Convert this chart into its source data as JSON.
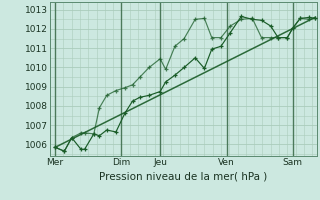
{
  "xlabel": "Pression niveau de la mer( hPa )",
  "bg_color": "#cce8e0",
  "grid_color": "#aaccbb",
  "line_color": "#1a5c28",
  "ylim": [
    1005.4,
    1013.4
  ],
  "yticks": [
    1006,
    1007,
    1008,
    1009,
    1010,
    1011,
    1012,
    1013
  ],
  "day_labels": [
    "Mer",
    "Dim",
    "Jeu",
    "Ven",
    "Sam"
  ],
  "day_positions": [
    0,
    36,
    57,
    93,
    129
  ],
  "vline_positions": [
    0,
    36,
    57,
    93,
    129
  ],
  "xlim": [
    -3,
    142
  ],
  "series1_x": [
    0,
    5,
    9,
    14,
    16,
    21,
    24,
    28,
    33,
    38,
    42,
    46,
    51,
    57,
    60,
    65,
    70,
    76,
    81,
    85,
    90,
    95,
    101,
    107,
    112,
    117,
    121,
    126,
    129,
    133,
    138,
    141
  ],
  "series1_y": [
    1005.85,
    1005.65,
    1006.35,
    1005.75,
    1005.75,
    1006.55,
    1006.45,
    1006.75,
    1006.65,
    1007.65,
    1008.25,
    1008.45,
    1008.55,
    1008.75,
    1009.25,
    1009.6,
    1010.0,
    1010.5,
    1009.95,
    1010.95,
    1011.1,
    1011.8,
    1012.65,
    1012.5,
    1012.45,
    1012.15,
    1011.55,
    1011.55,
    1012.05,
    1012.55,
    1012.6,
    1012.55
  ],
  "series2_x": [
    0,
    5,
    9,
    14,
    16,
    21,
    24,
    28,
    33,
    38,
    42,
    46,
    51,
    57,
    60,
    65,
    70,
    76,
    81,
    85,
    90,
    95,
    101,
    107,
    112,
    117,
    121,
    126,
    129,
    133,
    138,
    141
  ],
  "series2_y": [
    1005.85,
    1005.65,
    1006.35,
    1006.6,
    1006.6,
    1006.55,
    1007.9,
    1008.55,
    1008.8,
    1008.95,
    1009.1,
    1009.5,
    1010.0,
    1010.45,
    1009.9,
    1011.1,
    1011.5,
    1012.5,
    1012.55,
    1011.55,
    1011.55,
    1012.15,
    1012.5,
    1012.55,
    1011.55,
    1011.55,
    1011.55,
    1011.55,
    1012.05,
    1012.55,
    1012.5,
    1012.55
  ],
  "trend_x": [
    0,
    141
  ],
  "trend_y": [
    1005.85,
    1012.6
  ]
}
